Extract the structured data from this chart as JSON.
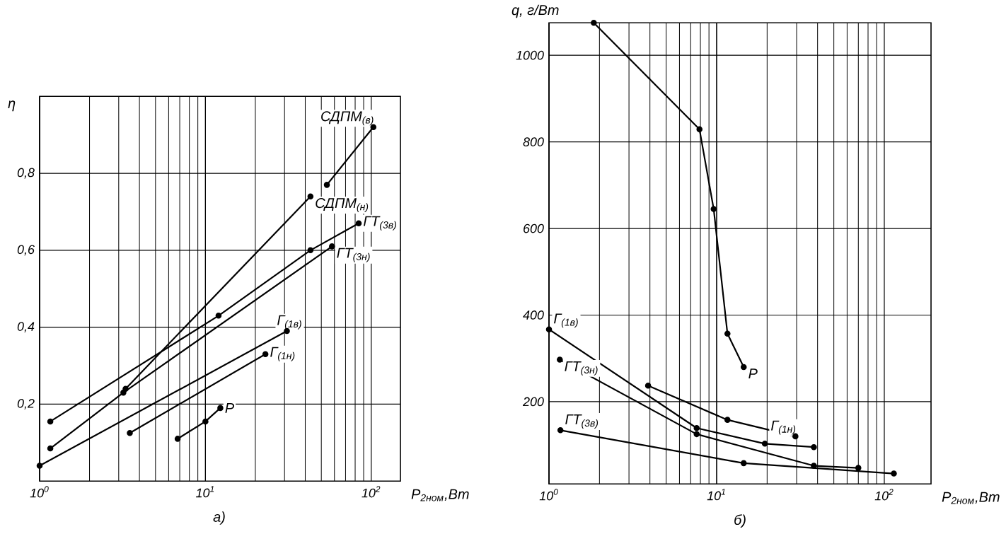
{
  "chart_data": [
    {
      "type": "line",
      "ylabel": "η",
      "xlabel": "P$_{2ном}$,Вт",
      "annotations": [
        "а)"
      ],
      "log": "x",
      "grid": true,
      "marker": "circle",
      "line_style": "solid",
      "xlim": [
        1,
        150
      ],
      "ylim": [
        0,
        1
      ],
      "xticks": [
        {
          "value": 1,
          "label": "10$^{0}$"
        },
        {
          "value": 10,
          "label": "10$^{1}$"
        },
        {
          "value": 100,
          "label": "10$^{2}$"
        }
      ],
      "yticks": [
        {
          "value": 0.2,
          "label": "0,2"
        },
        {
          "value": 0.4,
          "label": "0,4"
        },
        {
          "value": 0.6,
          "label": "0,6"
        },
        {
          "value": 0.8,
          "label": "0,8"
        }
      ],
      "series": [
        {
          "name": "СДПМ$_{(в)}$",
          "color": "#000000",
          "x": [
            54,
            103
          ],
          "values": [
            0.77,
            0.92
          ]
        },
        {
          "name": "СДПМ$_{(н)}$",
          "color": "#000000",
          "x": [
            3.3,
            43
          ],
          "values": [
            0.24,
            0.74
          ]
        },
        {
          "name": "ГТ$_{(3в)}$",
          "color": "#000000",
          "x": [
            1.16,
            12,
            43,
            84
          ],
          "values": [
            0.155,
            0.43,
            0.6,
            0.67
          ]
        },
        {
          "name": "ГТ$_{(3н)}$",
          "color": "#000000",
          "x": [
            1.16,
            3.2,
            58
          ],
          "values": [
            0.085,
            0.23,
            0.61
          ]
        },
        {
          "name": "Г$_{(1в)}$",
          "color": "#000000",
          "x": [
            1,
            31
          ],
          "values": [
            0.04,
            0.39
          ]
        },
        {
          "name": "Г$_{(1н)}$",
          "color": "#000000",
          "x": [
            3.5,
            23
          ],
          "values": [
            0.125,
            0.33
          ]
        },
        {
          "name": "Р",
          "color": "#000000",
          "x": [
            6.8,
            10,
            12.3
          ],
          "values": [
            0.11,
            0.155,
            0.19
          ]
        }
      ]
    },
    {
      "type": "line",
      "ylabel": "q, г/Вт",
      "xlabel": "P$_{2ном}$,Вт",
      "annotations": [
        "б)"
      ],
      "log": "x",
      "grid": true,
      "marker": "circle",
      "line_style": "solid",
      "xlim": [
        1,
        190
      ],
      "ylim": [
        10,
        1075
      ],
      "xticks": [
        {
          "value": 1,
          "label": "10$^{0}$"
        },
        {
          "value": 10,
          "label": "10$^{1}$"
        },
        {
          "value": 100,
          "label": "10$^{2}$"
        }
      ],
      "yticks": [
        200,
        400,
        600,
        800,
        1000
      ],
      "series": [
        {
          "name": "Р",
          "color": "#000000",
          "x": [
            1.85,
            7.9,
            9.6,
            11.6,
            14.5
          ],
          "values": [
            1075,
            829,
            645,
            357,
            280
          ]
        },
        {
          "name": "Г$_{(1в)}$",
          "color": "#000000",
          "x": [
            1,
            7.6,
            19.4,
            38
          ],
          "values": [
            367,
            139,
            103,
            95
          ]
        },
        {
          "name": "ГТ$_{(3н)}$",
          "color": "#000000",
          "x": [
            1.16,
            7.6,
            38,
            70
          ],
          "values": [
            297,
            125,
            52,
            47
          ]
        },
        {
          "name": "ГТ$_{(3в)}$",
          "color": "#000000",
          "x": [
            1.17,
            14.5,
            114
          ],
          "values": [
            134,
            58,
            34
          ]
        },
        {
          "name": "Г$_{(1н)}$",
          "color": "#000000",
          "x": [
            3.9,
            11.6,
            29.5
          ],
          "values": [
            237,
            158,
            120
          ]
        }
      ]
    }
  ]
}
